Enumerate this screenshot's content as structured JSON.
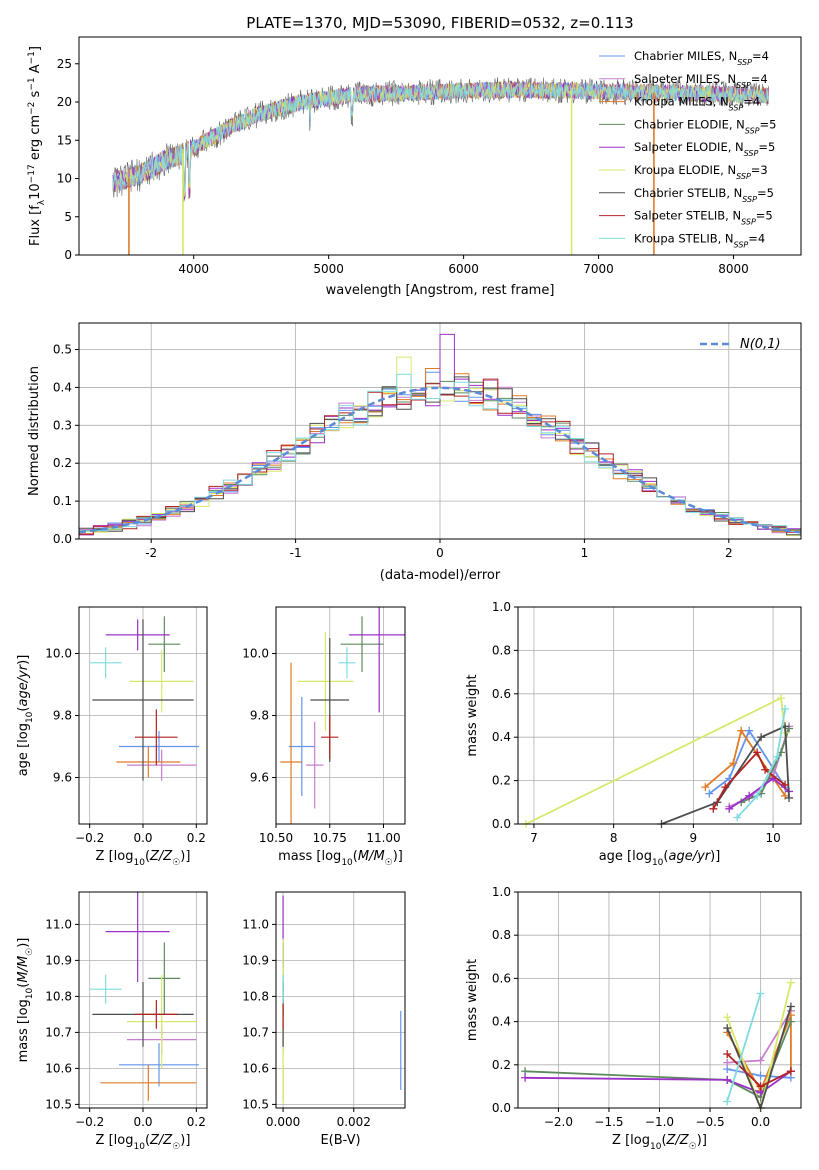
{
  "figure_title": "PLATE=1370, MJD=53090, FIBERID=0532, z=0.113",
  "colors": [
    "#6495ed",
    "#c77ecf",
    "#e07b28",
    "#5e8a5e",
    "#9b30c8",
    "#d8e86a",
    "#4d4d4d",
    "#b22222",
    "#7fdbe0"
  ],
  "chart_data": [
    {
      "id": "spectrum",
      "type": "line",
      "xlabel": "wavelength [Angstrom, rest frame]",
      "ylabel": "Flux [f_λ 10^-17 erg cm^-2 s^-1 A^-1]",
      "xlim": [
        3150,
        8500
      ],
      "ylim": [
        0,
        28.5
      ],
      "xticks": [
        4000,
        5000,
        6000,
        7000,
        8000
      ],
      "yticks": [
        0,
        5,
        10,
        15,
        20,
        25
      ],
      "legend_position": "upper-right",
      "legend": [
        "Chabrier MILES, N_SSP=4",
        "Salpeter MILES, N_SSP=4",
        "Kroupa MILES, N_SSP=4",
        "Chabrier ELODIE, N_SSP=5",
        "Salpeter ELODIE, N_SSP=5",
        "Kroupa ELODIE, N_SSP=3",
        "Chabrier STELIB, N_SSP=5",
        "Salpeter STELIB, N_SSP=5",
        "Kroupa STELIB, N_SSP=4"
      ],
      "continuum": [
        [
          3400,
          9.5
        ],
        [
          3600,
          10.5
        ],
        [
          3800,
          12.5
        ],
        [
          3950,
          13.5
        ],
        [
          4100,
          15
        ],
        [
          4300,
          17
        ],
        [
          4500,
          18.5
        ],
        [
          4800,
          20
        ],
        [
          5200,
          21
        ],
        [
          5600,
          21.2
        ],
        [
          6000,
          21.5
        ],
        [
          6400,
          21.6
        ],
        [
          6800,
          21.5
        ],
        [
          7200,
          21.3
        ],
        [
          7600,
          21.2
        ],
        [
          8000,
          21.0
        ],
        [
          8260,
          20.8
        ]
      ],
      "dips_to_zero": [
        3520,
        3920,
        6800,
        7410
      ]
    },
    {
      "id": "residual_hist",
      "type": "histogram",
      "xlabel": "(data-model)/error",
      "ylabel": "Normed distribution",
      "xlim": [
        -2.5,
        2.5
      ],
      "ylim": [
        0,
        0.57
      ],
      "xticks": [
        -2,
        -1,
        0,
        1,
        2
      ],
      "yticks": [
        0,
        0.1,
        0.2,
        0.3,
        0.4,
        0.5
      ],
      "bin_width": 0.1,
      "curve_label": "N(0,1)",
      "curve_color": "#5b8bd6",
      "legend_position": "upper-right"
    },
    {
      "id": "z_age",
      "type": "errorbar",
      "xlabel": "Z [log10(Z/Z☉)]",
      "ylabel": "age [log10(age/yr)]",
      "xlim": [
        -0.24,
        0.24
      ],
      "ylim": [
        9.45,
        10.15
      ],
      "xticks": [
        -0.2,
        0.0,
        0.2
      ],
      "xticklabels": [
        "−0.2",
        "0.0",
        "0.2"
      ],
      "yticks": [
        9.6,
        9.8,
        10.0
      ],
      "points": [
        {
          "x": 0.06,
          "xerr": 0.15,
          "y": 9.7,
          "yerr": 0.05
        },
        {
          "x": 0.07,
          "xerr": 0.13,
          "y": 9.64,
          "yerr": 0.05
        },
        {
          "x": 0.02,
          "xerr": 0.12,
          "y": 9.65,
          "yerr": 0.05
        },
        {
          "x": 0.08,
          "xerr": 0.06,
          "y": 10.03,
          "yerr": 0.09
        },
        {
          "x": -0.02,
          "xerr": 0.12,
          "y": 10.06,
          "yerr": 0.05
        },
        {
          "x": 0.07,
          "xerr": 0.12,
          "y": 9.91,
          "yerr": 0.1
        },
        {
          "x": 0.0,
          "xerr": 0.19,
          "y": 9.85,
          "yerr": 0.26
        },
        {
          "x": 0.05,
          "xerr": 0.08,
          "y": 9.73,
          "yerr": 0.09
        },
        {
          "x": -0.14,
          "xerr": 0.06,
          "y": 9.97,
          "yerr": 0.05
        }
      ]
    },
    {
      "id": "mass_age",
      "type": "errorbar",
      "xlabel": "mass [log10(M/M☉)]",
      "xlim": [
        10.5,
        11.1
      ],
      "ylim": [
        9.45,
        10.15
      ],
      "xticks": [
        10.5,
        10.75,
        11.0
      ],
      "xticklabels": [
        "10.50",
        "10.75",
        "11.00"
      ],
      "yticks": [
        9.6,
        9.8,
        10.0
      ],
      "points": [
        {
          "x": 10.62,
          "xerr": 0.06,
          "y": 9.7,
          "yerr": 0.16
        },
        {
          "x": 10.68,
          "xerr": 0.04,
          "y": 9.64,
          "yerr": 0.14
        },
        {
          "x": 10.57,
          "xerr": 0.05,
          "y": 9.65,
          "yerr": 0.32
        },
        {
          "x": 10.9,
          "xerr": 0.1,
          "y": 10.03,
          "yerr": 0.09
        },
        {
          "x": 10.98,
          "xerr": 0.14,
          "y": 10.06,
          "yerr": 0.25
        },
        {
          "x": 10.73,
          "xerr": 0.13,
          "y": 9.91,
          "yerr": 0.16
        },
        {
          "x": 10.75,
          "xerr": 0.09,
          "y": 9.85,
          "yerr": 0.2
        },
        {
          "x": 10.75,
          "xerr": 0.04,
          "y": 9.73,
          "yerr": 0.07
        },
        {
          "x": 10.83,
          "xerr": 0.04,
          "y": 9.97,
          "yerr": 0.05
        }
      ]
    },
    {
      "id": "age_massweight",
      "type": "line",
      "xlabel": "age [log10(age/yr)]",
      "ylabel": "mass weight",
      "xlim": [
        6.8,
        10.35
      ],
      "ylim": [
        0,
        1.0
      ],
      "xticks": [
        7,
        8,
        9,
        10
      ],
      "yticks": [
        0,
        0.2,
        0.4,
        0.6,
        0.8,
        1.0
      ],
      "series": [
        {
          "x": [
            9.2,
            9.45,
            9.7,
            10.15
          ],
          "y": [
            0.14,
            0.21,
            0.43,
            0.17
          ]
        },
        {
          "x": [
            9.45,
            9.7,
            10.0,
            10.2
          ],
          "y": [
            0.08,
            0.12,
            0.22,
            0.45
          ]
        },
        {
          "x": [
            9.15,
            9.5,
            9.6,
            10.15
          ],
          "y": [
            0.17,
            0.28,
            0.43,
            0.13
          ]
        },
        {
          "x": [
            9.6,
            9.85,
            10.1,
            10.2
          ],
          "y": [
            0.1,
            0.14,
            0.33,
            0.44
          ]
        },
        {
          "x": [
            9.45,
            9.7,
            10.0,
            10.2
          ],
          "y": [
            0.07,
            0.13,
            0.21,
            0.15
          ]
        },
        {
          "x": [
            6.9,
            10.1,
            10.15
          ],
          "y": [
            0.0,
            0.58,
            0.42
          ]
        },
        {
          "x": [
            8.6,
            9.3,
            9.85,
            10.15,
            10.2
          ],
          "y": [
            0.0,
            0.1,
            0.4,
            0.45,
            0.12
          ]
        },
        {
          "x": [
            9.25,
            9.4,
            9.8,
            9.9,
            10.15
          ],
          "y": [
            0.07,
            0.17,
            0.33,
            0.25,
            0.18
          ]
        },
        {
          "x": [
            9.55,
            9.8,
            10.05,
            10.15
          ],
          "y": [
            0.03,
            0.13,
            0.31,
            0.53
          ]
        }
      ]
    },
    {
      "id": "z_mass",
      "type": "errorbar",
      "xlabel": "Z [log10(Z/Z☉)]",
      "ylabel": "mass [log10(M/M☉)]",
      "xlim": [
        -0.24,
        0.24
      ],
      "ylim": [
        10.49,
        11.09
      ],
      "xticks": [
        -0.2,
        0.0,
        0.2
      ],
      "xticklabels": [
        "−0.2",
        "0.0",
        "0.2"
      ],
      "yticks": [
        10.5,
        10.6,
        10.7,
        10.8,
        10.9,
        11.0
      ],
      "points": [
        {
          "x": 0.06,
          "xerr": 0.15,
          "y": 10.61,
          "yerr": 0.06
        },
        {
          "x": 0.07,
          "xerr": 0.13,
          "y": 10.68,
          "yerr": 0.04
        },
        {
          "x": 0.02,
          "xerr": 0.18,
          "y": 10.56,
          "yerr": 0.05
        },
        {
          "x": 0.08,
          "xerr": 0.06,
          "y": 10.85,
          "yerr": 0.1
        },
        {
          "x": -0.02,
          "xerr": 0.12,
          "y": 10.98,
          "yerr": 0.14
        },
        {
          "x": 0.07,
          "xerr": 0.13,
          "y": 10.73,
          "yerr": 0.13
        },
        {
          "x": 0.0,
          "xerr": 0.19,
          "y": 10.75,
          "yerr": 0.09
        },
        {
          "x": 0.05,
          "xerr": 0.08,
          "y": 10.75,
          "yerr": 0.04
        },
        {
          "x": -0.14,
          "xerr": 0.06,
          "y": 10.82,
          "yerr": 0.04
        }
      ]
    },
    {
      "id": "ebv_mass",
      "type": "errorbar",
      "xlabel": "E(B-V)",
      "xlim": [
        -0.0002,
        0.00345
      ],
      "ylim": [
        10.49,
        11.09
      ],
      "xticks": [
        0.0,
        0.002
      ],
      "xticklabels": [
        "0.000",
        "0.002"
      ],
      "yticks": [
        10.5,
        10.6,
        10.7,
        10.8,
        10.9,
        11.0
      ],
      "points": [
        {
          "x": 0.00333,
          "xerr": 0,
          "y": 10.65,
          "yerr": 0.11
        },
        {
          "x": 0.0,
          "xerr": 0,
          "y": 10.68,
          "yerr": 0.04
        },
        {
          "x": 0.0,
          "xerr": 0,
          "y": 10.56,
          "yerr": 0.05
        },
        {
          "x": 0.0,
          "xerr": 0,
          "y": 10.85,
          "yerr": 0.1
        },
        {
          "x": 0.0,
          "xerr": 0,
          "y": 10.98,
          "yerr": 0.1
        },
        {
          "x": 0.0,
          "xerr": 0,
          "y": 10.73,
          "yerr": 0.23
        },
        {
          "x": 0.0,
          "xerr": 0,
          "y": 10.75,
          "yerr": 0.09
        },
        {
          "x": 0.0,
          "xerr": 0,
          "y": 10.75,
          "yerr": 0.04
        },
        {
          "x": 0.0,
          "xerr": 0,
          "y": 10.82,
          "yerr": 0.04
        }
      ]
    },
    {
      "id": "z_massweight",
      "type": "line",
      "xlabel": "Z [log10(Z/Z☉)]",
      "ylabel": "mass weight",
      "xlim": [
        -2.4,
        0.4
      ],
      "ylim": [
        0,
        1.0
      ],
      "xticks": [
        -2.0,
        -1.5,
        -1.0,
        -0.5,
        0.0
      ],
      "xticklabels": [
        "−2.0",
        "−1.5",
        "−1.0",
        "−0.5",
        "0.0"
      ],
      "yticks": [
        0,
        0.2,
        0.4,
        0.6,
        0.8,
        1.0
      ],
      "series": [
        {
          "x": [
            -0.33,
            0.0,
            0.3
          ],
          "y": [
            0.18,
            0.15,
            0.14
          ]
        },
        {
          "x": [
            -0.33,
            0.0,
            0.3
          ],
          "y": [
            0.21,
            0.22,
            0.45
          ]
        },
        {
          "x": [
            -0.33,
            0.0,
            0.3,
            0.3
          ],
          "y": [
            0.35,
            0.08,
            0.43,
            0.17
          ]
        },
        {
          "x": [
            -2.33,
            -0.33,
            0.0,
            0.3
          ],
          "y": [
            0.17,
            0.13,
            0.05,
            0.4
          ]
        },
        {
          "x": [
            -2.33,
            -0.33,
            0.0,
            0.3
          ],
          "y": [
            0.14,
            0.13,
            0.07,
            0.17
          ]
        },
        {
          "x": [
            -0.33,
            0.0,
            0.3
          ],
          "y": [
            0.42,
            0.0,
            0.58
          ]
        },
        {
          "x": [
            -0.33,
            0.0,
            0.3
          ],
          "y": [
            0.37,
            0.0,
            0.47
          ]
        },
        {
          "x": [
            -0.33,
            0.0,
            0.3
          ],
          "y": [
            0.25,
            0.1,
            0.17
          ]
        },
        {
          "x": [
            -0.33,
            0.0
          ],
          "y": [
            0.03,
            0.53
          ]
        }
      ]
    }
  ]
}
